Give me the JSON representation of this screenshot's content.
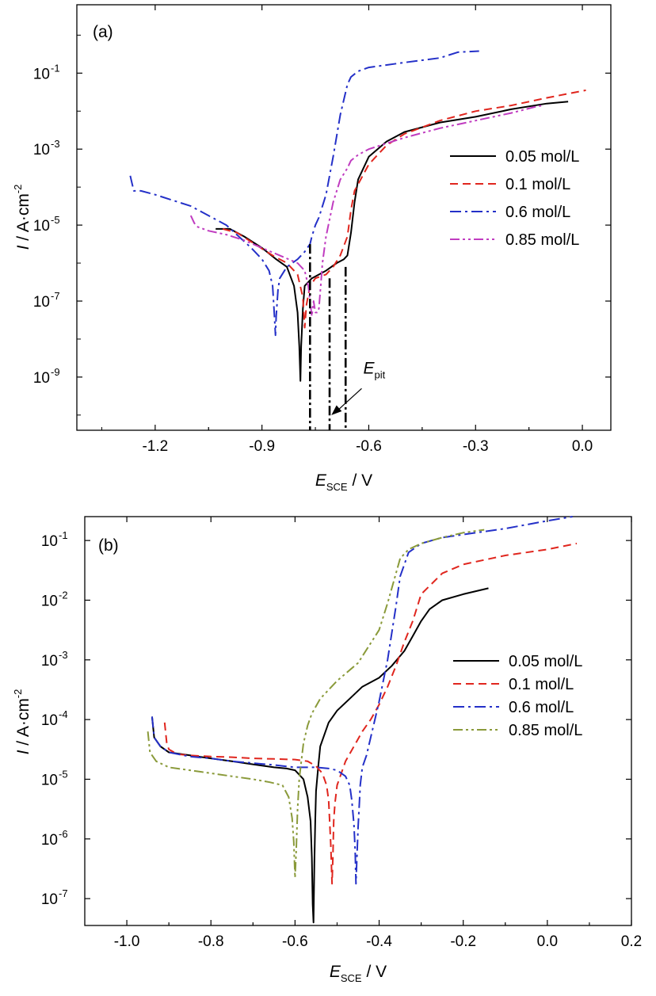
{
  "chart_data": [
    {
      "panel_label": "(a)",
      "type": "line",
      "y_scale": "log",
      "xlabel_main": "E",
      "xlabel_sub": "SCE",
      "xlabel_unit": " / V",
      "ylabel_main": "I",
      "ylabel_unit": " / A·cm",
      "ylabel_exp": "-2",
      "xlim": [
        -1.42,
        0.08
      ],
      "ylim_exp": [
        -10.4,
        0.8
      ],
      "x_ticks": [
        -1.2,
        -0.9,
        -0.6,
        -0.3,
        0.0
      ],
      "x_tick_labels": [
        "-1.2",
        "-0.9",
        "-0.6",
        "-0.3",
        "0.0"
      ],
      "y_ticks_exp": [
        -9,
        -7,
        -5,
        -3,
        -1
      ],
      "y_tick_base": "10",
      "y_tick_exps": [
        "-9",
        "-7",
        "-5",
        "-3",
        "-1"
      ],
      "annotation": {
        "main": "E",
        "sub": "pit",
        "arrow_from": [
          -0.62,
          -9.3
        ],
        "arrow_to": [
          -0.705,
          -10.0
        ],
        "text_at": [
          -0.62,
          -9.2
        ]
      },
      "epit_lines": [
        {
          "series": "0.05 mol/L",
          "x": -0.665,
          "top_exp": -6.1
        },
        {
          "series": "0.1 mol/L",
          "x": -0.71,
          "top_exp": -6.4
        },
        {
          "series": "0.6 mol/L",
          "x": -0.765,
          "top_exp": -5.5
        }
      ],
      "legend_position": "right",
      "series": [
        {
          "name": "0.05 mol/L",
          "color": "#000000",
          "dash": "",
          "x": [
            -1.03,
            -0.99,
            -0.95,
            -0.9,
            -0.86,
            -0.83,
            -0.81,
            -0.8,
            -0.795,
            -0.792,
            -0.79,
            -0.785,
            -0.78,
            -0.76,
            -0.72,
            -0.69,
            -0.67,
            -0.66,
            -0.65,
            -0.64,
            -0.63,
            -0.6,
            -0.55,
            -0.5,
            -0.4,
            -0.3,
            -0.2,
            -0.1,
            -0.04
          ],
          "y": [
            -5.1,
            -5.1,
            -5.3,
            -5.6,
            -5.9,
            -6.1,
            -6.6,
            -7.3,
            -8.2,
            -9.1,
            -8.2,
            -7.2,
            -6.6,
            -6.4,
            -6.2,
            -6.0,
            -5.9,
            -5.8,
            -5.2,
            -4.4,
            -3.8,
            -3.2,
            -2.8,
            -2.55,
            -2.3,
            -2.15,
            -1.95,
            -1.8,
            -1.75
          ]
        },
        {
          "name": "0.1 mol/L",
          "color": "#e0261e",
          "dash": "10,6",
          "x": [
            -1.01,
            -0.97,
            -0.92,
            -0.87,
            -0.83,
            -0.8,
            -0.785,
            -0.78,
            -0.775,
            -0.765,
            -0.75,
            -0.72,
            -0.7,
            -0.68,
            -0.66,
            -0.65,
            -0.64,
            -0.6,
            -0.55,
            -0.5,
            -0.4,
            -0.3,
            -0.2,
            -0.1,
            0.01
          ],
          "y": [
            -5.1,
            -5.2,
            -5.5,
            -5.8,
            -6.0,
            -6.3,
            -6.9,
            -7.7,
            -7.1,
            -6.6,
            -6.4,
            -6.3,
            -6.1,
            -5.8,
            -5.3,
            -4.6,
            -4.1,
            -3.4,
            -2.9,
            -2.6,
            -2.25,
            -2.0,
            -1.85,
            -1.65,
            -1.45
          ]
        },
        {
          "name": "0.6 mol/L",
          "color": "#2430c8",
          "dash": "14,5,3,5",
          "x": [
            -1.27,
            -1.265,
            -1.26,
            -1.24,
            -1.2,
            -1.1,
            -1.0,
            -0.93,
            -0.9,
            -0.88,
            -0.87,
            -0.865,
            -0.862,
            -0.86,
            -0.855,
            -0.85,
            -0.83,
            -0.8,
            -0.78,
            -0.765,
            -0.76,
            -0.75,
            -0.74,
            -0.72,
            -0.7,
            -0.68,
            -0.66,
            -0.65,
            -0.63,
            -0.6,
            -0.5,
            -0.4,
            -0.35,
            -0.29
          ],
          "y": [
            -3.7,
            -3.9,
            -4.1,
            -4.1,
            -4.2,
            -4.5,
            -5.0,
            -5.6,
            -5.9,
            -6.2,
            -6.6,
            -7.4,
            -7.9,
            -7.4,
            -6.7,
            -6.4,
            -6.1,
            -5.9,
            -5.7,
            -5.5,
            -5.3,
            -5.0,
            -4.8,
            -4.2,
            -3.2,
            -2.1,
            -1.3,
            -1.1,
            -0.95,
            -0.85,
            -0.72,
            -0.6,
            -0.45,
            -0.42
          ]
        },
        {
          "name": "0.85 mol/L",
          "color": "#c03cc0",
          "dash": "12,4,3,4,3,4",
          "x": [
            -1.1,
            -1.09,
            -1.08,
            -1.05,
            -1.0,
            -0.95,
            -0.9,
            -0.85,
            -0.8,
            -0.78,
            -0.77,
            -0.76,
            -0.755,
            -0.75,
            -0.745,
            -0.74,
            -0.735,
            -0.73,
            -0.72,
            -0.7,
            -0.68,
            -0.66,
            -0.65,
            -0.63,
            -0.6,
            -0.5,
            -0.4,
            -0.3,
            -0.2,
            -0.13,
            -0.11
          ],
          "y": [
            -4.75,
            -4.95,
            -5.05,
            -5.15,
            -5.25,
            -5.4,
            -5.6,
            -5.8,
            -6.0,
            -6.2,
            -6.6,
            -7.4,
            -7.0,
            -7.3,
            -7.3,
            -7.2,
            -6.6,
            -6.0,
            -5.3,
            -4.4,
            -3.8,
            -3.5,
            -3.3,
            -3.15,
            -3.0,
            -2.7,
            -2.45,
            -2.25,
            -2.05,
            -1.88,
            -1.85
          ]
        }
      ]
    },
    {
      "panel_label": "(b)",
      "type": "line",
      "y_scale": "log",
      "xlabel_main": "E",
      "xlabel_sub": "SCE",
      "xlabel_unit": " / V",
      "ylabel_main": "I",
      "ylabel_unit": " / A·cm",
      "ylabel_exp": "-2",
      "xlim": [
        -1.1,
        0.2
      ],
      "ylim_exp": [
        -7.45,
        -0.6
      ],
      "x_ticks": [
        -1.0,
        -0.8,
        -0.6,
        -0.4,
        -0.2,
        0.0,
        0.2
      ],
      "x_tick_labels": [
        "-1.0",
        "-0.8",
        "-0.6",
        "-0.4",
        "-0.2",
        "0.0",
        "0.2"
      ],
      "y_ticks_exp": [
        -7,
        -6,
        -5,
        -4,
        -3,
        -2,
        -1
      ],
      "y_tick_base": "10",
      "y_tick_exps": [
        "-7",
        "-6",
        "-5",
        "-4",
        "-3",
        "-2",
        "-1"
      ],
      "legend_position": "right",
      "series": [
        {
          "name": "0.05 mol/L",
          "color": "#000000",
          "dash": "",
          "x": [
            -0.94,
            -0.935,
            -0.92,
            -0.9,
            -0.85,
            -0.8,
            -0.75,
            -0.7,
            -0.65,
            -0.62,
            -0.6,
            -0.58,
            -0.57,
            -0.563,
            -0.56,
            -0.558,
            -0.556,
            -0.554,
            -0.552,
            -0.55,
            -0.545,
            -0.54,
            -0.52,
            -0.5,
            -0.47,
            -0.44,
            -0.4,
            -0.37,
            -0.34,
            -0.32,
            -0.3,
            -0.28,
            -0.25,
            -0.2,
            -0.14
          ],
          "y": [
            -3.95,
            -4.3,
            -4.45,
            -4.55,
            -4.6,
            -4.65,
            -4.7,
            -4.75,
            -4.8,
            -4.82,
            -4.85,
            -5.0,
            -5.3,
            -5.7,
            -6.3,
            -7.1,
            -7.4,
            -6.4,
            -5.7,
            -5.2,
            -4.8,
            -4.45,
            -4.05,
            -3.85,
            -3.65,
            -3.45,
            -3.3,
            -3.1,
            -2.85,
            -2.6,
            -2.35,
            -2.15,
            -2.0,
            -1.9,
            -1.8
          ]
        },
        {
          "name": "0.1 mol/L",
          "color": "#e0261e",
          "dash": "10,6",
          "x": [
            -0.91,
            -0.905,
            -0.9,
            -0.88,
            -0.85,
            -0.8,
            -0.75,
            -0.7,
            -0.65,
            -0.6,
            -0.57,
            -0.55,
            -0.535,
            -0.525,
            -0.52,
            -0.518,
            -0.515,
            -0.512,
            -0.51,
            -0.508,
            -0.505,
            -0.5,
            -0.48,
            -0.46,
            -0.44,
            -0.42,
            -0.4,
            -0.38,
            -0.36,
            -0.34,
            -0.32,
            -0.3,
            -0.25,
            -0.2,
            -0.1,
            0.0,
            0.07
          ],
          "y": [
            -4.05,
            -4.4,
            -4.5,
            -4.58,
            -4.6,
            -4.62,
            -4.63,
            -4.65,
            -4.66,
            -4.67,
            -4.7,
            -4.78,
            -4.9,
            -5.1,
            -5.35,
            -5.65,
            -6.1,
            -6.75,
            -6.3,
            -5.7,
            -5.4,
            -5.1,
            -4.7,
            -4.45,
            -4.2,
            -4.0,
            -3.75,
            -3.45,
            -3.1,
            -2.7,
            -2.35,
            -1.9,
            -1.55,
            -1.4,
            -1.25,
            -1.15,
            -1.05
          ]
        },
        {
          "name": "0.6 mol/L",
          "color": "#2430c8",
          "dash": "14,5,3,5",
          "x": [
            -0.94,
            -0.935,
            -0.92,
            -0.9,
            -0.85,
            -0.8,
            -0.75,
            -0.7,
            -0.65,
            -0.6,
            -0.55,
            -0.52,
            -0.5,
            -0.48,
            -0.47,
            -0.465,
            -0.46,
            -0.457,
            -0.455,
            -0.453,
            -0.45,
            -0.447,
            -0.445,
            -0.44,
            -0.43,
            -0.42,
            -0.41,
            -0.4,
            -0.39,
            -0.38,
            -0.37,
            -0.36,
            -0.35,
            -0.33,
            -0.3,
            -0.25,
            -0.2,
            -0.1,
            0.0,
            0.06
          ],
          "y": [
            -3.95,
            -4.3,
            -4.45,
            -4.55,
            -4.62,
            -4.65,
            -4.7,
            -4.73,
            -4.76,
            -4.8,
            -4.8,
            -4.82,
            -4.85,
            -4.95,
            -5.1,
            -5.35,
            -5.75,
            -6.2,
            -6.75,
            -6.35,
            -5.8,
            -5.4,
            -5.1,
            -4.8,
            -4.6,
            -4.3,
            -4.0,
            -3.7,
            -3.35,
            -3.0,
            -2.55,
            -2.1,
            -1.6,
            -1.2,
            -1.05,
            -0.95,
            -0.9,
            -0.8,
            -0.67,
            -0.6
          ]
        },
        {
          "name": "0.85 mol/L",
          "color": "#8a9a3a",
          "dash": "12,4,3,4,3,4",
          "x": [
            -0.95,
            -0.945,
            -0.93,
            -0.9,
            -0.85,
            -0.8,
            -0.75,
            -0.7,
            -0.66,
            -0.63,
            -0.615,
            -0.607,
            -0.603,
            -0.6,
            -0.597,
            -0.594,
            -0.59,
            -0.585,
            -0.58,
            -0.57,
            -0.56,
            -0.54,
            -0.5,
            -0.45,
            -0.4,
            -0.38,
            -0.36,
            -0.35,
            -0.33,
            -0.3,
            -0.25,
            -0.2,
            -0.15
          ],
          "y": [
            -4.2,
            -4.55,
            -4.7,
            -4.8,
            -4.85,
            -4.9,
            -4.95,
            -5.0,
            -5.05,
            -5.1,
            -5.3,
            -5.65,
            -6.05,
            -6.65,
            -6.15,
            -5.5,
            -5.0,
            -4.7,
            -4.4,
            -4.1,
            -3.9,
            -3.65,
            -3.35,
            -3.05,
            -2.5,
            -2.05,
            -1.55,
            -1.3,
            -1.15,
            -1.05,
            -0.95,
            -0.87,
            -0.82
          ]
        }
      ]
    }
  ]
}
